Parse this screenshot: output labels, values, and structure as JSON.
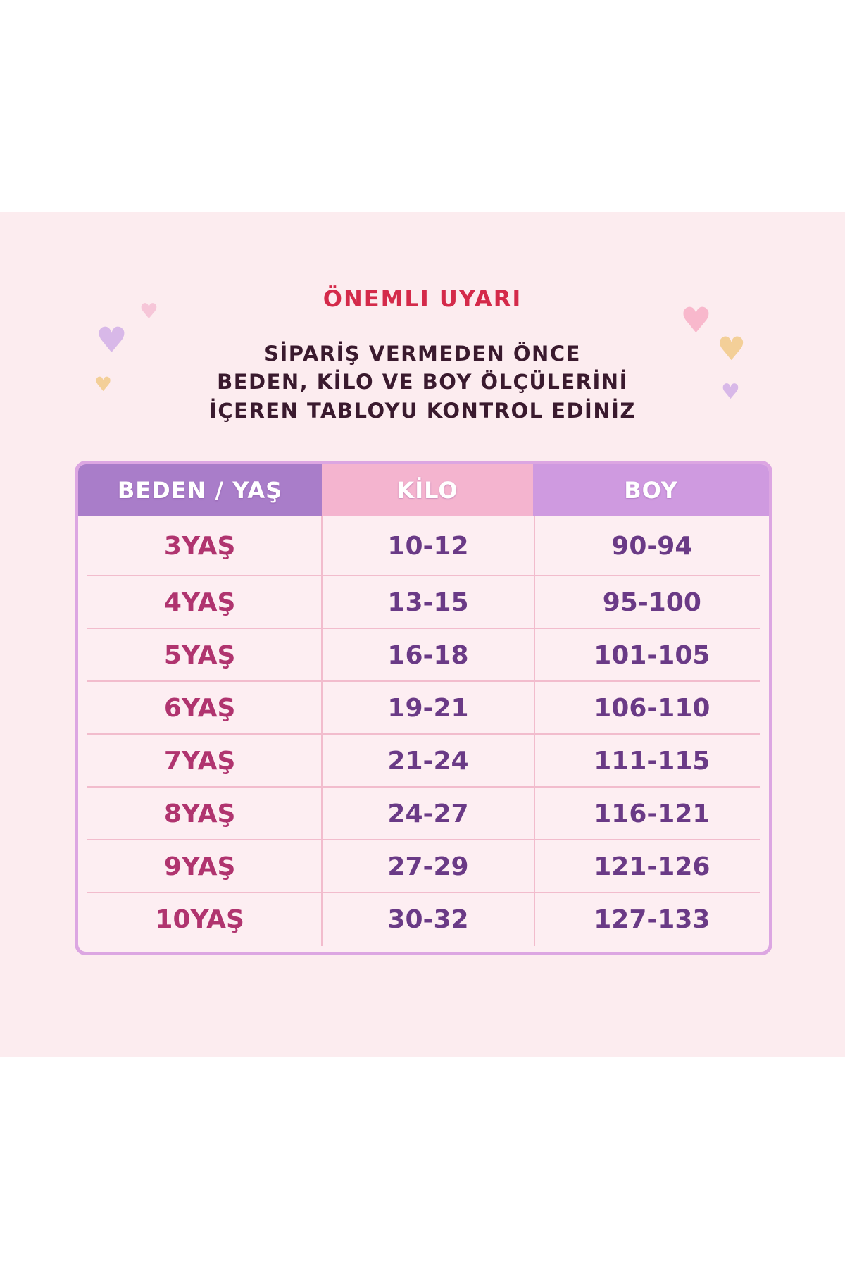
{
  "title": "ÖNEMLI UYARI",
  "subtitle_lines": [
    "SİPARİŞ VERMEDEN ÖNCE",
    "BEDEN, KİLO VE BOY ÖLÇÜLERİNİ",
    "İÇEREN TABLOYU KONTROL EDİNİZ"
  ],
  "colors": {
    "title": "#d42a4a",
    "header_age": "#a97dc9",
    "header_kilo": "#f4b4cf",
    "header_boy": "#cf9ae0",
    "age_text": "#b0346f",
    "value_text": "#6a3a86",
    "background": "#fcecef"
  },
  "table": {
    "headers": [
      "BEDEN / YAŞ",
      "KİLO",
      "BOY"
    ],
    "rows": [
      [
        "3YAŞ",
        "10-12",
        "90-94"
      ],
      [
        "4YAŞ",
        "13-15",
        "95-100"
      ],
      [
        "5YAŞ",
        "16-18",
        "101-105"
      ],
      [
        "6YAŞ",
        "19-21",
        "106-110"
      ],
      [
        "7YAŞ",
        "21-24",
        "111-115"
      ],
      [
        "8YAŞ",
        "24-27",
        "116-121"
      ],
      [
        "9YAŞ",
        "27-29",
        "121-126"
      ],
      [
        "10YAŞ",
        "30-32",
        "127-133"
      ]
    ]
  },
  "icons": [
    "heart-icon"
  ]
}
